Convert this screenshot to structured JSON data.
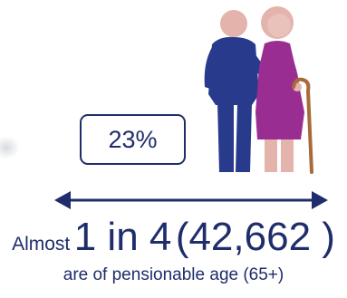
{
  "stat": {
    "percent": "23%",
    "prefix": "Almost",
    "ratio_text": "1 in 4",
    "count_text": "(42,662 )",
    "caption": "are of pensionable age (65+)"
  },
  "icons": {
    "figures": "elderly-couple-icon",
    "arrow": "double-headed-arrow-icon"
  },
  "colors": {
    "navy": "#1f2d6b",
    "man_body": "#283a8c",
    "woman_dress": "#9a2d92",
    "skin": "#e3b3ac",
    "cane": "#a86a3a"
  }
}
